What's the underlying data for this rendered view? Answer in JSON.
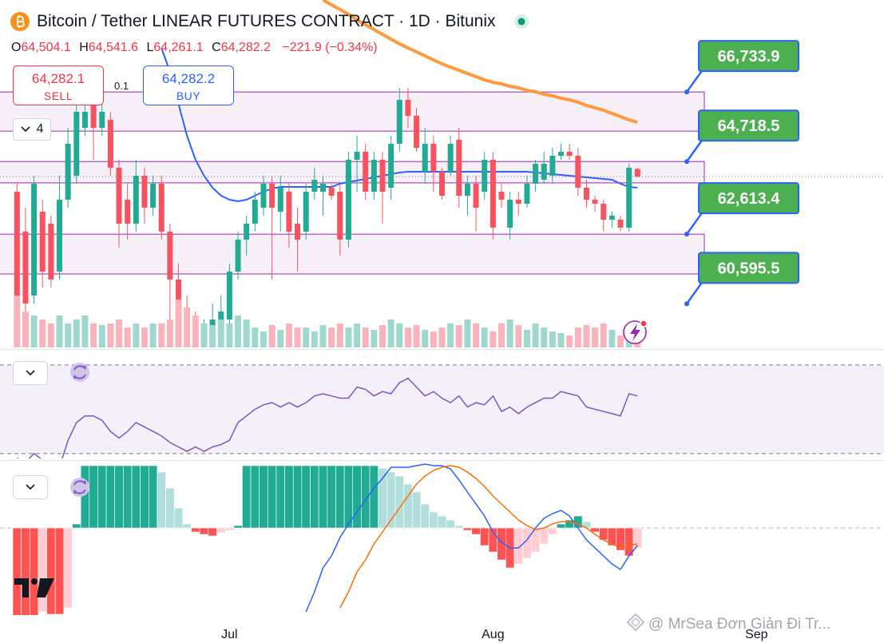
{
  "header": {
    "title": "Bitcoin / Tether LINEAR FUTURES CONTRACT · 1D · Bitunix",
    "ohlc": [
      {
        "key": "O",
        "value": "64,504.1"
      },
      {
        "key": "H",
        "value": "64,541.6"
      },
      {
        "key": "L",
        "value": "64,261.1"
      },
      {
        "key": "C",
        "value": "64,282.2"
      }
    ],
    "change": "−221.9 (−0.34%)"
  },
  "trade": {
    "sell_price": "64,282.1",
    "sell_label": "SELL",
    "quantity": "0.1",
    "buy_price": "64,282.2",
    "buy_label": "BUY"
  },
  "indicator_count": "4",
  "watermark": "@ MrSea Đơn Giản Đi Tr...",
  "chart_data": [
    {
      "type": "candlestick",
      "open": [
        63844,
        62687,
        60835,
        63265,
        62918,
        61529,
        63613,
        64307,
        65696,
        66391,
        65696,
        65928,
        64539,
        63613,
        62918,
        64307,
        63381,
        64076,
        62687,
        61298,
        60372,
        59909,
        59446,
        59677,
        59909,
        60140,
        61529,
        62455,
        62918,
        63381,
        64076,
        63265,
        63844,
        62918,
        62687,
        63844,
        63844,
        63960,
        63844,
        62455,
        64770,
        65002,
        63844,
        64770,
        63960,
        65233,
        66506,
        66043,
        64423,
        65233,
        64423,
        64423,
        65349,
        63728,
        64076,
        63844,
        64770,
        63844,
        62802,
        63613,
        63497,
        64076,
        64191,
        64307,
        64886,
        65002,
        64886,
        63960,
        63613,
        63497,
        63034,
        63034,
        62802,
        64504.1
      ],
      "high": [
        64076,
        63381,
        64307,
        63613,
        63150,
        64307,
        65696,
        66391,
        66854,
        66854,
        66506,
        66159,
        64770,
        64076,
        64770,
        64539,
        64307,
        64307,
        62918,
        61761,
        60835,
        60372,
        60140,
        60603,
        60835,
        61761,
        62687,
        63150,
        63844,
        64307,
        64307,
        64307,
        64076,
        63381,
        64076,
        64539,
        64307,
        64076,
        64076,
        65002,
        65465,
        65233,
        65002,
        65002,
        65465,
        66854,
        66854,
        66275,
        65696,
        65465,
        64539,
        65465,
        65696,
        64307,
        64307,
        65002,
        65002,
        64076,
        63844,
        63844,
        64307,
        64770,
        65002,
        65117,
        65233,
        65233,
        65117,
        64191,
        63728,
        63613,
        63265,
        63150,
        64654,
        64541.6
      ],
      "low": [
        60603,
        60372,
        60603,
        61066,
        61066,
        61298,
        63381,
        64076,
        65465,
        64770,
        65465,
        64307,
        62224,
        62455,
        62687,
        62918,
        63150,
        62455,
        60140,
        59446,
        59446,
        59446,
        59446,
        59446,
        59446,
        59909,
        61298,
        61992,
        62687,
        63150,
        61298,
        62687,
        62224,
        61529,
        62455,
        63613,
        63150,
        63613,
        61992,
        62224,
        63844,
        63613,
        63613,
        62918,
        63613,
        65002,
        65696,
        65002,
        64076,
        63844,
        63613,
        64307,
        63381,
        63150,
        62687,
        63613,
        62455,
        63381,
        62455,
        63150,
        63381,
        63844,
        64076,
        64076,
        64770,
        64770,
        63728,
        63381,
        63265,
        62687,
        62802,
        62687,
        62687,
        64261.1
      ],
      "close": [
        60835,
        60603,
        64076,
        61529,
        61298,
        63613,
        65233,
        66159,
        66159,
        65696,
        66159,
        64539,
        62918,
        62918,
        64307,
        63381,
        64076,
        62687,
        61298,
        59677,
        59446,
        59446,
        59909,
        60140,
        60372,
        61529,
        62455,
        62918,
        63613,
        64076,
        63381,
        63960,
        62687,
        62455,
        63844,
        64191,
        64076,
        63728,
        62455,
        64770,
        65002,
        63844,
        64770,
        63844,
        65233,
        66506,
        66043,
        65117,
        65233,
        64423,
        63728,
        65233,
        63728,
        64076,
        63381,
        64770,
        62802,
        63613,
        63613,
        63497,
        64076,
        64654,
        64654,
        64886,
        65002,
        64886,
        63960,
        63613,
        63497,
        63034,
        63150,
        62802,
        64539,
        64282.2
      ],
      "up_color": "#22ab94",
      "down_color": "#f7525f",
      "xlim": [
        -2,
        102
      ],
      "xticks": [
        {
          "value": 25,
          "label": "Jul"
        },
        {
          "value": 56,
          "label": "Aug"
        },
        {
          "value": 87,
          "label": "Sep"
        }
      ],
      "ylim": [
        59330,
        69400
      ],
      "series": [
        {
          "color": "#2962ff",
          "values": [
            null,
            null,
            null,
            null,
            null,
            null,
            null,
            null,
            null,
            null,
            null,
            null,
            null,
            null,
            null,
            null,
            null,
            68011,
            67317,
            66391,
            65465,
            64770,
            64307,
            63960,
            63728,
            63613,
            63566,
            63613,
            63728,
            63844,
            63937,
            63983,
            63983,
            63983,
            63983,
            63983,
            63983,
            63983,
            64076,
            64122,
            64169,
            64215,
            64261,
            64307,
            64353,
            64400,
            64423,
            64423,
            64423,
            64423,
            64423,
            64423,
            64423,
            64423,
            64423,
            64423,
            64423,
            64423,
            64423,
            64423,
            64423,
            64400,
            64377,
            64353,
            64330,
            64307,
            64284,
            64261,
            64238,
            64215,
            64192,
            64076,
            63983,
            63960
          ]
        },
        {
          "color": "#ff9a3c",
          "values": [
            null,
            null,
            null,
            null,
            null,
            null,
            null,
            null,
            null,
            null,
            null,
            null,
            null,
            null,
            null,
            null,
            null,
            null,
            null,
            null,
            null,
            null,
            null,
            null,
            null,
            null,
            null,
            null,
            null,
            null,
            null,
            null,
            null,
            null,
            null,
            null,
            69400,
            69261,
            69122,
            68983,
            68821,
            68682,
            68543,
            68405,
            68266,
            68127,
            68011,
            67895,
            67780,
            67664,
            67548,
            67455,
            67363,
            67270,
            67178,
            67085,
            67016,
            66969,
            66900,
            66854,
            66784,
            66738,
            66668,
            66622,
            66553,
            66506,
            66437,
            66344,
            66275,
            66205,
            66113,
            66020,
            65928,
            65858
          ]
        }
      ],
      "levels": [
        66733.9,
        64718.5,
        62613.4,
        60595.5
      ],
      "level_labels": [
        "66,733.9",
        "64,718.5",
        "62,613.4",
        "60,595.5"
      ],
      "zone_edges": [
        65600,
        64100,
        61460
      ],
      "zone_color": "#9c27b0",
      "last_price": 64282.2
    },
    {
      "type": "bar",
      "values": [
        65,
        45,
        40,
        35,
        30,
        40,
        30,
        35,
        40,
        30,
        28,
        30,
        35,
        25,
        30,
        25,
        30,
        30,
        35,
        60,
        50,
        40,
        30,
        28,
        35,
        30,
        40,
        35,
        25,
        20,
        28,
        22,
        30,
        25,
        25,
        20,
        28,
        25,
        30,
        25,
        30,
        25,
        22,
        28,
        35,
        30,
        25,
        28,
        22,
        20,
        25,
        30,
        28,
        35,
        30,
        25,
        20,
        30,
        35,
        28,
        22,
        30,
        25,
        20,
        18,
        15,
        25,
        28,
        25,
        30,
        22,
        15,
        20,
        18
      ],
      "up_color": "#9fd8cf",
      "down_color": "#f8b4ba",
      "xlim": [
        -2,
        102
      ],
      "ylim": [
        0,
        100
      ]
    },
    {
      "type": "line",
      "values": [
        28,
        26,
        30,
        27,
        25,
        24,
        36,
        44,
        47,
        47,
        45,
        40,
        37,
        40,
        44,
        42,
        40,
        38,
        35,
        33,
        31,
        33,
        31,
        33,
        34,
        36,
        44,
        47,
        50,
        52,
        53,
        51,
        53,
        51,
        53,
        56,
        57,
        56,
        55,
        55,
        60,
        59,
        56,
        58,
        57,
        62,
        64,
        60,
        56,
        58,
        55,
        53,
        56,
        51,
        53,
        52,
        56,
        49,
        51,
        48,
        51,
        53,
        55,
        55,
        58,
        57,
        56,
        51,
        50,
        49,
        48,
        47,
        57,
        56
      ],
      "color": "#7e57c2",
      "bands": [
        30,
        70
      ],
      "xlim": [
        -2,
        102
      ],
      "ylim": [
        0,
        100
      ]
    },
    {
      "type": "macd",
      "values": [
        -110,
        -110,
        -110,
        -105,
        -108,
        -108,
        -100,
        5,
        78,
        78,
        78,
        78,
        78,
        78,
        78,
        78,
        78,
        70,
        50,
        25,
        5,
        -5,
        -8,
        -10,
        -6,
        -3,
        3,
        78,
        78,
        78,
        78,
        78,
        78,
        78,
        78,
        78,
        78,
        78,
        78,
        78,
        78,
        78,
        78,
        75,
        70,
        65,
        55,
        45,
        30,
        20,
        15,
        10,
        3,
        -3,
        -8,
        -22,
        -30,
        -40,
        -50,
        -45,
        -38,
        -30,
        -20,
        -8,
        5,
        10,
        15,
        8,
        -5,
        -15,
        -22,
        -28,
        -35,
        -25
      ],
      "positive_colors": [
        "#22ab94",
        "#b2dfdb"
      ],
      "negative_colors": [
        "#ff5252",
        "#ffcdd2"
      ],
      "series": [
        {
          "color": "#2962ff",
          "values": [
            null,
            null,
            null,
            null,
            null,
            null,
            null,
            null,
            null,
            null,
            null,
            null,
            null,
            null,
            null,
            null,
            null,
            null,
            null,
            null,
            null,
            null,
            null,
            null,
            null,
            null,
            null,
            null,
            null,
            null,
            null,
            null,
            null,
            null,
            -105,
            -80,
            -50,
            -35,
            -12,
            5,
            20,
            35,
            50,
            62,
            76,
            76,
            76,
            78,
            80,
            78,
            78,
            74,
            60,
            45,
            30,
            15,
            -5,
            -18,
            -25,
            -25,
            -15,
            0,
            12,
            18,
            22,
            15,
            0,
            -15,
            -25,
            -35,
            -45,
            -52,
            -35,
            -22
          ]
        },
        {
          "color": "#ff6d00",
          "values": [
            null,
            null,
            null,
            null,
            null,
            null,
            null,
            null,
            null,
            null,
            null,
            null,
            null,
            null,
            null,
            null,
            null,
            null,
            null,
            null,
            null,
            null,
            null,
            null,
            null,
            null,
            null,
            null,
            null,
            null,
            null,
            null,
            null,
            null,
            null,
            null,
            null,
            null,
            -100,
            -80,
            -55,
            -40,
            -20,
            -5,
            10,
            25,
            40,
            55,
            65,
            72,
            76,
            78,
            76,
            70,
            62,
            52,
            40,
            30,
            20,
            10,
            3,
            -2,
            0,
            5,
            8,
            8,
            5,
            0,
            -8,
            -15,
            -20,
            -25,
            -22,
            -20
          ]
        }
      ],
      "xlim": [
        -2,
        102
      ],
      "ylim": [
        -110,
        80
      ]
    }
  ]
}
